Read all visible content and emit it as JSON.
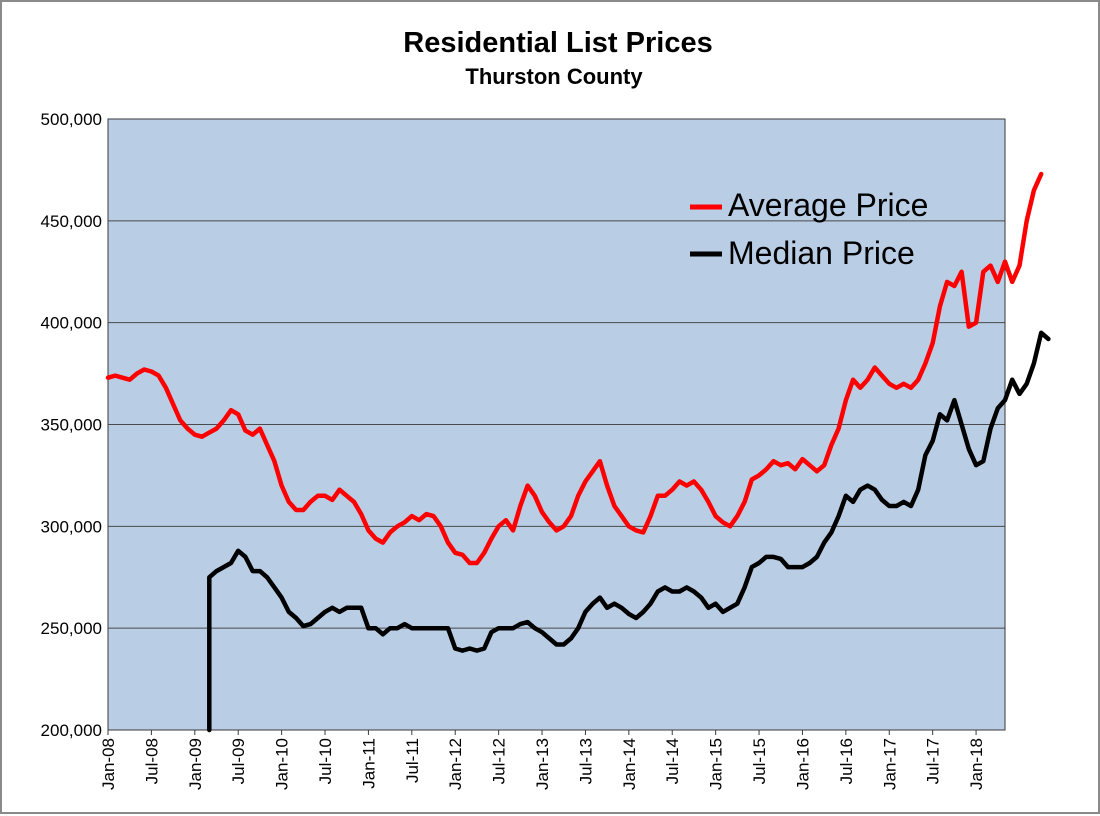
{
  "colors": {
    "plot_background": "#b9cde5",
    "gridline": "#4a4a4a",
    "average": "#ff0000",
    "median": "#000000"
  },
  "chart_data": {
    "type": "line",
    "title": "Residential List Prices",
    "subtitle": "Thurston County",
    "xlabel": "",
    "ylabel": "",
    "ylim": [
      200000,
      500000
    ],
    "xlim": [
      "2008-01",
      "2018-05"
    ],
    "y_ticks": [
      {
        "value": 200000,
        "label": "200,000"
      },
      {
        "value": 250000,
        "label": "250,000"
      },
      {
        "value": 300000,
        "label": "300,000"
      },
      {
        "value": 350000,
        "label": "350,000"
      },
      {
        "value": 400000,
        "label": "400,000"
      },
      {
        "value": 450000,
        "label": "450,000"
      },
      {
        "value": 500000,
        "label": "500,000"
      }
    ],
    "x_ticks": [
      {
        "date": "2008-01",
        "label": "Jan-08"
      },
      {
        "date": "2008-07",
        "label": "Jul-08"
      },
      {
        "date": "2009-01",
        "label": "Jan-09"
      },
      {
        "date": "2009-07",
        "label": "Jul-09"
      },
      {
        "date": "2010-01",
        "label": "Jan-10"
      },
      {
        "date": "2010-07",
        "label": "Jul-10"
      },
      {
        "date": "2011-01",
        "label": "Jan-11"
      },
      {
        "date": "2011-07",
        "label": "Jul-11"
      },
      {
        "date": "2012-01",
        "label": "Jan-12"
      },
      {
        "date": "2012-07",
        "label": "Jul-12"
      },
      {
        "date": "2013-01",
        "label": "Jan-13"
      },
      {
        "date": "2013-07",
        "label": "Jul-13"
      },
      {
        "date": "2014-01",
        "label": "Jan-14"
      },
      {
        "date": "2014-07",
        "label": "Jul-14"
      },
      {
        "date": "2015-01",
        "label": "Jan-15"
      },
      {
        "date": "2015-07",
        "label": "Jul-15"
      },
      {
        "date": "2016-01",
        "label": "Jan-16"
      },
      {
        "date": "2016-07",
        "label": "Jul-16"
      },
      {
        "date": "2017-01",
        "label": "Jan-17"
      },
      {
        "date": "2017-07",
        "label": "Jul-17"
      },
      {
        "date": "2018-01",
        "label": "Jan-18"
      }
    ],
    "grid": true,
    "legend_position": "top-right",
    "series": [
      {
        "name": "Average Price",
        "color": "#ff0000",
        "points": [
          [
            "2008-01",
            373000
          ],
          [
            "2008-02",
            374000
          ],
          [
            "2008-03",
            373000
          ],
          [
            "2008-04",
            372000
          ],
          [
            "2008-05",
            375000
          ],
          [
            "2008-06",
            377000
          ],
          [
            "2008-07",
            376000
          ],
          [
            "2008-08",
            374000
          ],
          [
            "2008-09",
            368000
          ],
          [
            "2008-10",
            360000
          ],
          [
            "2008-11",
            352000
          ],
          [
            "2008-12",
            348000
          ],
          [
            "2009-01",
            345000
          ],
          [
            "2009-02",
            344000
          ],
          [
            "2009-03",
            346000
          ],
          [
            "2009-04",
            348000
          ],
          [
            "2009-05",
            352000
          ],
          [
            "2009-06",
            357000
          ],
          [
            "2009-07",
            355000
          ],
          [
            "2009-08",
            347000
          ],
          [
            "2009-09",
            345000
          ],
          [
            "2009-10",
            348000
          ],
          [
            "2009-11",
            340000
          ],
          [
            "2009-12",
            332000
          ],
          [
            "2010-01",
            320000
          ],
          [
            "2010-02",
            312000
          ],
          [
            "2010-03",
            308000
          ],
          [
            "2010-04",
            308000
          ],
          [
            "2010-05",
            312000
          ],
          [
            "2010-06",
            315000
          ],
          [
            "2010-07",
            315000
          ],
          [
            "2010-08",
            313000
          ],
          [
            "2010-09",
            318000
          ],
          [
            "2010-10",
            315000
          ],
          [
            "2010-11",
            312000
          ],
          [
            "2010-12",
            306000
          ],
          [
            "2011-01",
            298000
          ],
          [
            "2011-02",
            294000
          ],
          [
            "2011-03",
            292000
          ],
          [
            "2011-04",
            297000
          ],
          [
            "2011-05",
            300000
          ],
          [
            "2011-06",
            302000
          ],
          [
            "2011-07",
            305000
          ],
          [
            "2011-08",
            303000
          ],
          [
            "2011-09",
            306000
          ],
          [
            "2011-10",
            305000
          ],
          [
            "2011-11",
            300000
          ],
          [
            "2011-12",
            292000
          ],
          [
            "2012-01",
            287000
          ],
          [
            "2012-02",
            286000
          ],
          [
            "2012-03",
            282000
          ],
          [
            "2012-04",
            282000
          ],
          [
            "2012-05",
            287000
          ],
          [
            "2012-06",
            294000
          ],
          [
            "2012-07",
            300000
          ],
          [
            "2012-08",
            303000
          ],
          [
            "2012-09",
            298000
          ],
          [
            "2012-10",
            310000
          ],
          [
            "2012-11",
            320000
          ],
          [
            "2012-12",
            315000
          ],
          [
            "2013-01",
            307000
          ],
          [
            "2013-02",
            302000
          ],
          [
            "2013-03",
            298000
          ],
          [
            "2013-04",
            300000
          ],
          [
            "2013-05",
            305000
          ],
          [
            "2013-06",
            315000
          ],
          [
            "2013-07",
            322000
          ],
          [
            "2013-08",
            327000
          ],
          [
            "2013-09",
            332000
          ],
          [
            "2013-10",
            320000
          ],
          [
            "2013-11",
            310000
          ],
          [
            "2013-12",
            305000
          ],
          [
            "2014-01",
            300000
          ],
          [
            "2014-02",
            298000
          ],
          [
            "2014-03",
            297000
          ],
          [
            "2014-04",
            305000
          ],
          [
            "2014-05",
            315000
          ],
          [
            "2014-06",
            315000
          ],
          [
            "2014-07",
            318000
          ],
          [
            "2014-08",
            322000
          ],
          [
            "2014-09",
            320000
          ],
          [
            "2014-10",
            322000
          ],
          [
            "2014-11",
            318000
          ],
          [
            "2014-12",
            312000
          ],
          [
            "2015-01",
            305000
          ],
          [
            "2015-02",
            302000
          ],
          [
            "2015-03",
            300000
          ],
          [
            "2015-04",
            305000
          ],
          [
            "2015-05",
            312000
          ],
          [
            "2015-06",
            323000
          ],
          [
            "2015-07",
            325000
          ],
          [
            "2015-08",
            328000
          ],
          [
            "2015-09",
            332000
          ],
          [
            "2015-10",
            330000
          ],
          [
            "2015-11",
            331000
          ],
          [
            "2015-12",
            328000
          ],
          [
            "2016-01",
            333000
          ],
          [
            "2016-02",
            330000
          ],
          [
            "2016-03",
            327000
          ],
          [
            "2016-04",
            330000
          ],
          [
            "2016-05",
            340000
          ],
          [
            "2016-06",
            348000
          ],
          [
            "2016-07",
            362000
          ],
          [
            "2016-08",
            372000
          ],
          [
            "2016-09",
            368000
          ],
          [
            "2016-10",
            372000
          ],
          [
            "2016-11",
            378000
          ],
          [
            "2016-12",
            374000
          ],
          [
            "2017-01",
            370000
          ],
          [
            "2017-02",
            368000
          ],
          [
            "2017-03",
            370000
          ],
          [
            "2017-04",
            368000
          ],
          [
            "2017-05",
            372000
          ],
          [
            "2017-06",
            380000
          ],
          [
            "2017-07",
            390000
          ],
          [
            "2017-08",
            408000
          ],
          [
            "2017-09",
            420000
          ],
          [
            "2017-10",
            418000
          ],
          [
            "2017-11",
            425000
          ],
          [
            "2017-12",
            398000
          ],
          [
            "2018-01",
            400000
          ],
          [
            "2018-02",
            425000
          ],
          [
            "2018-03",
            428000
          ],
          [
            "2018-04",
            420000
          ],
          [
            "2018-05",
            430000
          ],
          [
            "2018-06",
            420000
          ],
          [
            "2018-07",
            428000
          ],
          [
            "2018-08",
            450000
          ],
          [
            "2018-09",
            465000
          ],
          [
            "2018-10",
            473000
          ]
        ]
      },
      {
        "name": "Median Price",
        "color": "#000000",
        "points": [
          [
            "2009-03",
            200000
          ],
          [
            "2009-03",
            275000
          ],
          [
            "2009-04",
            278000
          ],
          [
            "2009-05",
            280000
          ],
          [
            "2009-06",
            282000
          ],
          [
            "2009-07",
            288000
          ],
          [
            "2009-08",
            285000
          ],
          [
            "2009-09",
            278000
          ],
          [
            "2009-10",
            278000
          ],
          [
            "2009-11",
            275000
          ],
          [
            "2009-12",
            270000
          ],
          [
            "2010-01",
            265000
          ],
          [
            "2010-02",
            258000
          ],
          [
            "2010-03",
            255000
          ],
          [
            "2010-04",
            251000
          ],
          [
            "2010-05",
            252000
          ],
          [
            "2010-06",
            255000
          ],
          [
            "2010-07",
            258000
          ],
          [
            "2010-08",
            260000
          ],
          [
            "2010-09",
            258000
          ],
          [
            "2010-10",
            260000
          ],
          [
            "2010-11",
            260000
          ],
          [
            "2010-12",
            260000
          ],
          [
            "2011-01",
            250000
          ],
          [
            "2011-02",
            250000
          ],
          [
            "2011-03",
            247000
          ],
          [
            "2011-04",
            250000
          ],
          [
            "2011-05",
            250000
          ],
          [
            "2011-06",
            252000
          ],
          [
            "2011-07",
            250000
          ],
          [
            "2011-08",
            250000
          ],
          [
            "2011-09",
            250000
          ],
          [
            "2011-10",
            250000
          ],
          [
            "2011-11",
            250000
          ],
          [
            "2011-12",
            250000
          ],
          [
            "2012-01",
            240000
          ],
          [
            "2012-02",
            239000
          ],
          [
            "2012-03",
            240000
          ],
          [
            "2012-04",
            239000
          ],
          [
            "2012-05",
            240000
          ],
          [
            "2012-06",
            248000
          ],
          [
            "2012-07",
            250000
          ],
          [
            "2012-08",
            250000
          ],
          [
            "2012-09",
            250000
          ],
          [
            "2012-10",
            252000
          ],
          [
            "2012-11",
            253000
          ],
          [
            "2012-12",
            250000
          ],
          [
            "2013-01",
            248000
          ],
          [
            "2013-02",
            245000
          ],
          [
            "2013-03",
            242000
          ],
          [
            "2013-04",
            242000
          ],
          [
            "2013-05",
            245000
          ],
          [
            "2013-06",
            250000
          ],
          [
            "2013-07",
            258000
          ],
          [
            "2013-08",
            262000
          ],
          [
            "2013-09",
            265000
          ],
          [
            "2013-10",
            260000
          ],
          [
            "2013-11",
            262000
          ],
          [
            "2013-12",
            260000
          ],
          [
            "2014-01",
            257000
          ],
          [
            "2014-02",
            255000
          ],
          [
            "2014-03",
            258000
          ],
          [
            "2014-04",
            262000
          ],
          [
            "2014-05",
            268000
          ],
          [
            "2014-06",
            270000
          ],
          [
            "2014-07",
            268000
          ],
          [
            "2014-08",
            268000
          ],
          [
            "2014-09",
            270000
          ],
          [
            "2014-10",
            268000
          ],
          [
            "2014-11",
            265000
          ],
          [
            "2014-12",
            260000
          ],
          [
            "2015-01",
            262000
          ],
          [
            "2015-02",
            258000
          ],
          [
            "2015-03",
            260000
          ],
          [
            "2015-04",
            262000
          ],
          [
            "2015-05",
            270000
          ],
          [
            "2015-06",
            280000
          ],
          [
            "2015-07",
            282000
          ],
          [
            "2015-08",
            285000
          ],
          [
            "2015-09",
            285000
          ],
          [
            "2015-10",
            284000
          ],
          [
            "2015-11",
            280000
          ],
          [
            "2015-12",
            280000
          ],
          [
            "2016-01",
            280000
          ],
          [
            "2016-02",
            282000
          ],
          [
            "2016-03",
            285000
          ],
          [
            "2016-04",
            292000
          ],
          [
            "2016-05",
            297000
          ],
          [
            "2016-06",
            305000
          ],
          [
            "2016-07",
            315000
          ],
          [
            "2016-08",
            312000
          ],
          [
            "2016-09",
            318000
          ],
          [
            "2016-10",
            320000
          ],
          [
            "2016-11",
            318000
          ],
          [
            "2016-12",
            313000
          ],
          [
            "2017-01",
            310000
          ],
          [
            "2017-02",
            310000
          ],
          [
            "2017-03",
            312000
          ],
          [
            "2017-04",
            310000
          ],
          [
            "2017-05",
            318000
          ],
          [
            "2017-06",
            335000
          ],
          [
            "2017-07",
            342000
          ],
          [
            "2017-08",
            355000
          ],
          [
            "2017-09",
            352000
          ],
          [
            "2017-10",
            362000
          ],
          [
            "2017-11",
            350000
          ],
          [
            "2017-12",
            338000
          ],
          [
            "2018-01",
            330000
          ],
          [
            "2018-02",
            332000
          ],
          [
            "2018-03",
            348000
          ],
          [
            "2018-04",
            358000
          ],
          [
            "2018-05",
            362000
          ],
          [
            "2018-06",
            372000
          ],
          [
            "2018-07",
            365000
          ],
          [
            "2018-08",
            370000
          ],
          [
            "2018-09",
            380000
          ],
          [
            "2018-10",
            395000
          ],
          [
            "2018-11",
            392000
          ]
        ]
      }
    ]
  }
}
